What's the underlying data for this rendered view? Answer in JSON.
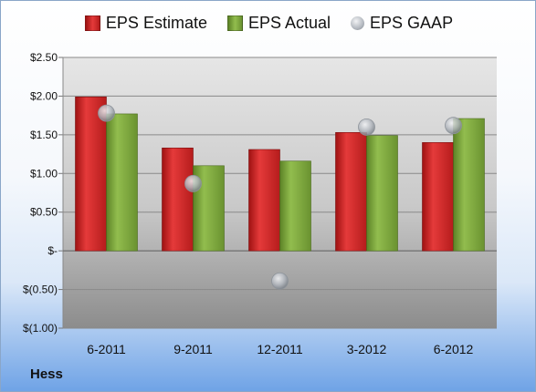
{
  "company": "Hess",
  "colors": {
    "estimate": "#d42a2a",
    "actual": "#7faa3d",
    "gaap": "#b9bec4"
  },
  "chart_data": {
    "type": "bar",
    "categories": [
      "6-2011",
      "9-2011",
      "12-2011",
      "3-2012",
      "6-2012"
    ],
    "series": [
      {
        "name": "EPS Estimate",
        "type": "bar",
        "values": [
          1.99,
          1.33,
          1.31,
          1.53,
          1.4
        ]
      },
      {
        "name": "EPS Actual",
        "type": "bar",
        "values": [
          1.77,
          1.1,
          1.16,
          1.49,
          1.71
        ]
      },
      {
        "name": "EPS GAAP",
        "type": "scatter",
        "values": [
          1.78,
          0.87,
          -0.39,
          1.6,
          1.62
        ]
      }
    ],
    "ylim": [
      -1.0,
      2.5
    ],
    "yticks": [
      2.5,
      2.0,
      1.5,
      1.0,
      0.5,
      0,
      -0.5,
      -1.0
    ],
    "ytick_labels": [
      "$2.50",
      "$2.00",
      "$1.50",
      "$1.00",
      "$0.50",
      "$-",
      "$(0.50)",
      "$(1.00)"
    ],
    "grid": true,
    "legend": "top"
  }
}
